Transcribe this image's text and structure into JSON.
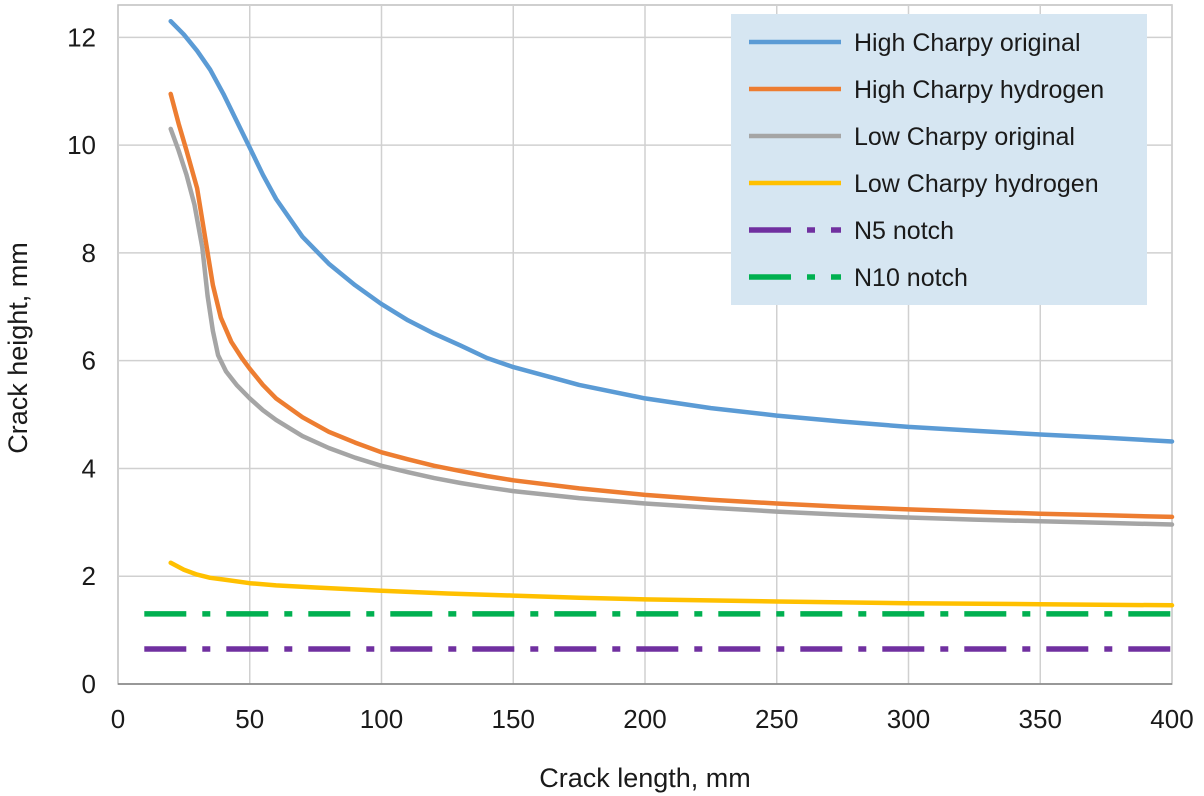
{
  "chart_data": {
    "type": "line",
    "title": "",
    "xlabel": "Crack length, mm",
    "ylabel": "Crack height, mm",
    "xlim": [
      0,
      400
    ],
    "ylim": [
      0,
      12.6
    ],
    "xticks": [
      0,
      50,
      100,
      150,
      200,
      250,
      300,
      350,
      400
    ],
    "yticks": [
      0,
      2,
      4,
      6,
      8,
      10,
      12
    ],
    "grid": true,
    "legend_position": "top-right",
    "legend_background": "#d6e6f2",
    "series": [
      {
        "name": "High Charpy original",
        "color": "#5b9bd5",
        "dash": "solid",
        "points": [
          [
            20,
            12.3
          ],
          [
            25,
            12.05
          ],
          [
            30,
            11.75
          ],
          [
            35,
            11.4
          ],
          [
            40,
            10.95
          ],
          [
            45,
            10.45
          ],
          [
            50,
            9.95
          ],
          [
            55,
            9.45
          ],
          [
            60,
            9.0
          ],
          [
            70,
            8.3
          ],
          [
            80,
            7.8
          ],
          [
            90,
            7.4
          ],
          [
            100,
            7.05
          ],
          [
            110,
            6.75
          ],
          [
            120,
            6.5
          ],
          [
            130,
            6.28
          ],
          [
            140,
            6.05
          ],
          [
            150,
            5.88
          ],
          [
            175,
            5.55
          ],
          [
            200,
            5.3
          ],
          [
            225,
            5.12
          ],
          [
            250,
            4.98
          ],
          [
            275,
            4.87
          ],
          [
            300,
            4.77
          ],
          [
            325,
            4.7
          ],
          [
            350,
            4.63
          ],
          [
            375,
            4.57
          ],
          [
            400,
            4.5
          ]
        ]
      },
      {
        "name": "High Charpy hydrogen",
        "color": "#ed7d31",
        "dash": "solid",
        "points": [
          [
            20,
            10.95
          ],
          [
            23,
            10.4
          ],
          [
            26,
            9.9
          ],
          [
            30,
            9.2
          ],
          [
            33,
            8.3
          ],
          [
            36,
            7.4
          ],
          [
            39,
            6.8
          ],
          [
            43,
            6.35
          ],
          [
            47,
            6.05
          ],
          [
            50,
            5.85
          ],
          [
            55,
            5.55
          ],
          [
            60,
            5.3
          ],
          [
            70,
            4.95
          ],
          [
            80,
            4.68
          ],
          [
            90,
            4.48
          ],
          [
            100,
            4.3
          ],
          [
            110,
            4.17
          ],
          [
            120,
            4.05
          ],
          [
            130,
            3.95
          ],
          [
            140,
            3.86
          ],
          [
            150,
            3.78
          ],
          [
            175,
            3.63
          ],
          [
            200,
            3.51
          ],
          [
            225,
            3.42
          ],
          [
            250,
            3.35
          ],
          [
            275,
            3.29
          ],
          [
            300,
            3.24
          ],
          [
            325,
            3.2
          ],
          [
            350,
            3.16
          ],
          [
            375,
            3.13
          ],
          [
            400,
            3.1
          ]
        ]
      },
      {
        "name": "Low Charpy original",
        "color": "#a5a5a5",
        "dash": "solid",
        "points": [
          [
            20,
            10.3
          ],
          [
            23,
            9.9
          ],
          [
            26,
            9.45
          ],
          [
            29,
            8.9
          ],
          [
            32,
            8.1
          ],
          [
            34,
            7.2
          ],
          [
            36,
            6.55
          ],
          [
            38,
            6.1
          ],
          [
            41,
            5.8
          ],
          [
            45,
            5.55
          ],
          [
            50,
            5.3
          ],
          [
            55,
            5.08
          ],
          [
            60,
            4.9
          ],
          [
            70,
            4.6
          ],
          [
            80,
            4.38
          ],
          [
            90,
            4.2
          ],
          [
            100,
            4.05
          ],
          [
            110,
            3.93
          ],
          [
            120,
            3.82
          ],
          [
            130,
            3.73
          ],
          [
            140,
            3.65
          ],
          [
            150,
            3.58
          ],
          [
            175,
            3.45
          ],
          [
            200,
            3.35
          ],
          [
            225,
            3.27
          ],
          [
            250,
            3.2
          ],
          [
            275,
            3.14
          ],
          [
            300,
            3.09
          ],
          [
            325,
            3.05
          ],
          [
            350,
            3.02
          ],
          [
            375,
            2.99
          ],
          [
            400,
            2.96
          ]
        ]
      },
      {
        "name": "Low Charpy hydrogen",
        "color": "#ffc000",
        "dash": "solid",
        "points": [
          [
            20,
            2.25
          ],
          [
            25,
            2.12
          ],
          [
            30,
            2.03
          ],
          [
            35,
            1.97
          ],
          [
            40,
            1.94
          ],
          [
            50,
            1.87
          ],
          [
            60,
            1.83
          ],
          [
            75,
            1.79
          ],
          [
            100,
            1.73
          ],
          [
            125,
            1.68
          ],
          [
            150,
            1.64
          ],
          [
            175,
            1.6
          ],
          [
            200,
            1.57
          ],
          [
            250,
            1.53
          ],
          [
            300,
            1.5
          ],
          [
            350,
            1.48
          ],
          [
            400,
            1.46
          ]
        ]
      },
      {
        "name": "N5 notch",
        "color": "#7030a0",
        "dash": "dashdot",
        "points": [
          [
            10,
            0.65
          ],
          [
            400,
            0.65
          ]
        ]
      },
      {
        "name": "N10 notch",
        "color": "#00b050",
        "dash": "dashdot",
        "points": [
          [
            10,
            1.3
          ],
          [
            400,
            1.3
          ]
        ]
      }
    ]
  }
}
